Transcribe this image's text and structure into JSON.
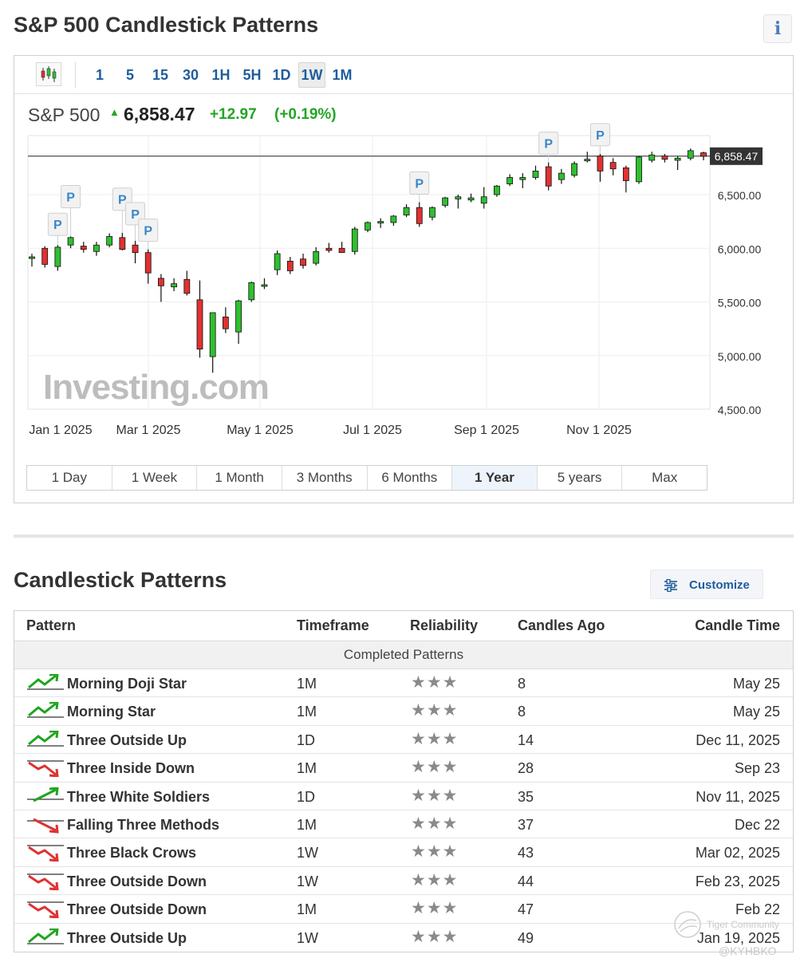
{
  "page": {
    "title": "S&P 500 Candlestick Patterns",
    "info_label": "i"
  },
  "toolbar": {
    "timeframes": [
      {
        "label": "1",
        "active": false
      },
      {
        "label": "5",
        "active": false
      },
      {
        "label": "15",
        "active": false
      },
      {
        "label": "30",
        "active": false
      },
      {
        "label": "1H",
        "active": false
      },
      {
        "label": "5H",
        "active": false
      },
      {
        "label": "1D",
        "active": false
      },
      {
        "label": "1W",
        "active": true
      },
      {
        "label": "1M",
        "active": false
      }
    ]
  },
  "quote": {
    "name": "S&P 500",
    "arrow": "▲",
    "price": "6,858.47",
    "change": "+12.97",
    "change_pct": "(+0.19%)"
  },
  "chart_data": {
    "type": "candlestick",
    "interval": "1W",
    "y_tick_labels": [
      "6,500.00",
      "6,000.00",
      "5,500.00",
      "5,000.00",
      "4,500.00"
    ],
    "y_ticks": [
      6500,
      6000,
      5500,
      5000,
      4500
    ],
    "x_tick_labels": [
      "Jan 1 2025",
      "Mar 1 2025",
      "May 1 2025",
      "Jul 1 2025",
      "Sep 1 2025",
      "Nov 1 2025"
    ],
    "ylim": [
      4500,
      7000
    ],
    "current_price": 6858.47,
    "current_price_label": "6,858.47",
    "watermark": "Investing.com",
    "pattern_marker_label": "P",
    "candles": [
      {
        "o": 5905,
        "h": 5950,
        "l": 5830,
        "c": 5920
      },
      {
        "o": 6000,
        "h": 6020,
        "l": 5820,
        "c": 5850
      },
      {
        "o": 5830,
        "h": 6030,
        "l": 5790,
        "c": 6010
      },
      {
        "o": 6030,
        "h": 6110,
        "l": 6000,
        "c": 6100
      },
      {
        "o": 6020,
        "h": 6060,
        "l": 5960,
        "c": 5990
      },
      {
        "o": 5970,
        "h": 6060,
        "l": 5930,
        "c": 6030
      },
      {
        "o": 6030,
        "h": 6140,
        "l": 6010,
        "c": 6110
      },
      {
        "o": 6100,
        "h": 6145,
        "l": 5980,
        "c": 5990
      },
      {
        "o": 6030,
        "h": 6070,
        "l": 5860,
        "c": 5960
      },
      {
        "o": 5960,
        "h": 5990,
        "l": 5670,
        "c": 5770
      },
      {
        "o": 5720,
        "h": 5760,
        "l": 5500,
        "c": 5650
      },
      {
        "o": 5640,
        "h": 5720,
        "l": 5600,
        "c": 5670
      },
      {
        "o": 5710,
        "h": 5790,
        "l": 5560,
        "c": 5580
      },
      {
        "o": 5520,
        "h": 5700,
        "l": 4980,
        "c": 5060
      },
      {
        "o": 4990,
        "h": 5400,
        "l": 4840,
        "c": 5400
      },
      {
        "o": 5360,
        "h": 5450,
        "l": 5210,
        "c": 5250
      },
      {
        "o": 5220,
        "h": 5520,
        "l": 5110,
        "c": 5510
      },
      {
        "o": 5520,
        "h": 5690,
        "l": 5500,
        "c": 5680
      },
      {
        "o": 5650,
        "h": 5720,
        "l": 5620,
        "c": 5660
      },
      {
        "o": 5800,
        "h": 5980,
        "l": 5750,
        "c": 5950
      },
      {
        "o": 5880,
        "h": 5920,
        "l": 5760,
        "c": 5790
      },
      {
        "o": 5900,
        "h": 5950,
        "l": 5810,
        "c": 5840
      },
      {
        "o": 5860,
        "h": 6010,
        "l": 5840,
        "c": 5970
      },
      {
        "o": 6000,
        "h": 6050,
        "l": 5960,
        "c": 5980
      },
      {
        "o": 6000,
        "h": 6060,
        "l": 5960,
        "c": 5960
      },
      {
        "o": 5970,
        "h": 6200,
        "l": 5940,
        "c": 6180
      },
      {
        "o": 6170,
        "h": 6250,
        "l": 6150,
        "c": 6240
      },
      {
        "o": 6240,
        "h": 6280,
        "l": 6190,
        "c": 6250
      },
      {
        "o": 6240,
        "h": 6310,
        "l": 6210,
        "c": 6300
      },
      {
        "o": 6310,
        "h": 6410,
        "l": 6290,
        "c": 6380
      },
      {
        "o": 6380,
        "h": 6430,
        "l": 6200,
        "c": 6230
      },
      {
        "o": 6290,
        "h": 6390,
        "l": 6260,
        "c": 6380
      },
      {
        "o": 6400,
        "h": 6480,
        "l": 6380,
        "c": 6470
      },
      {
        "o": 6460,
        "h": 6500,
        "l": 6370,
        "c": 6480
      },
      {
        "o": 6450,
        "h": 6510,
        "l": 6430,
        "c": 6470
      },
      {
        "o": 6420,
        "h": 6570,
        "l": 6370,
        "c": 6480
      },
      {
        "o": 6500,
        "h": 6590,
        "l": 6480,
        "c": 6580
      },
      {
        "o": 6600,
        "h": 6690,
        "l": 6580,
        "c": 6660
      },
      {
        "o": 6640,
        "h": 6700,
        "l": 6560,
        "c": 6660
      },
      {
        "o": 6660,
        "h": 6770,
        "l": 6640,
        "c": 6720
      },
      {
        "o": 6760,
        "h": 6800,
        "l": 6540,
        "c": 6580
      },
      {
        "o": 6640,
        "h": 6740,
        "l": 6600,
        "c": 6700
      },
      {
        "o": 6680,
        "h": 6810,
        "l": 6660,
        "c": 6790
      },
      {
        "o": 6820,
        "h": 6900,
        "l": 6800,
        "c": 6830
      },
      {
        "o": 6860,
        "h": 6880,
        "l": 6620,
        "c": 6720
      },
      {
        "o": 6800,
        "h": 6840,
        "l": 6680,
        "c": 6740
      },
      {
        "o": 6750,
        "h": 6770,
        "l": 6520,
        "c": 6630
      },
      {
        "o": 6620,
        "h": 6860,
        "l": 6600,
        "c": 6850
      },
      {
        "o": 6820,
        "h": 6900,
        "l": 6800,
        "c": 6870
      },
      {
        "o": 6860,
        "h": 6880,
        "l": 6800,
        "c": 6830
      },
      {
        "o": 6820,
        "h": 6860,
        "l": 6730,
        "c": 6840
      },
      {
        "o": 6840,
        "h": 6930,
        "l": 6820,
        "c": 6910
      },
      {
        "o": 6890,
        "h": 6900,
        "l": 6820,
        "c": 6858
      }
    ],
    "pattern_markers": [
      {
        "candle": 2
      },
      {
        "candle": 3
      },
      {
        "candle": 7
      },
      {
        "candle": 8
      },
      {
        "candle": 9
      },
      {
        "candle": 30
      },
      {
        "candle": 40
      },
      {
        "candle": 44
      }
    ]
  },
  "ranges": [
    {
      "label": "1 Day",
      "active": false
    },
    {
      "label": "1 Week",
      "active": false
    },
    {
      "label": "1 Month",
      "active": false
    },
    {
      "label": "3 Months",
      "active": false
    },
    {
      "label": "6 Months",
      "active": false
    },
    {
      "label": "1 Year",
      "active": true
    },
    {
      "label": "5 years",
      "active": false
    },
    {
      "label": "Max",
      "active": false
    }
  ],
  "patterns": {
    "title": "Candlestick Patterns",
    "customize_label": "Customize",
    "headers": {
      "pattern": "Pattern",
      "timeframe": "Timeframe",
      "reliability": "Reliability",
      "candles_ago": "Candles Ago",
      "candle_time": "Candle Time"
    },
    "group_label": "Completed Patterns",
    "rows": [
      {
        "name": "Morning Doji Star",
        "timeframe": "1M",
        "stars": "★★★",
        "candles_ago": "8",
        "time": "May 25",
        "direction": "bullish-strong"
      },
      {
        "name": "Morning Star",
        "timeframe": "1M",
        "stars": "★★★",
        "candles_ago": "8",
        "time": "May 25",
        "direction": "bullish-strong"
      },
      {
        "name": "Three Outside Up",
        "timeframe": "1D",
        "stars": "★★★",
        "candles_ago": "14",
        "time": "Dec 11, 2025",
        "direction": "bullish-strong"
      },
      {
        "name": "Three Inside Down",
        "timeframe": "1M",
        "stars": "★★★",
        "candles_ago": "28",
        "time": "Sep 23",
        "direction": "bearish-strong"
      },
      {
        "name": "Three White Soldiers",
        "timeframe": "1D",
        "stars": "★★★",
        "candles_ago": "35",
        "time": "Nov 11, 2025",
        "direction": "bullish-continuation"
      },
      {
        "name": "Falling Three Methods",
        "timeframe": "1M",
        "stars": "★★★",
        "candles_ago": "37",
        "time": "Dec 22",
        "direction": "bearish-continuation"
      },
      {
        "name": "Three Black Crows",
        "timeframe": "1W",
        "stars": "★★★",
        "candles_ago": "43",
        "time": "Mar 02, 2025",
        "direction": "bearish-strong"
      },
      {
        "name": "Three Outside Down",
        "timeframe": "1W",
        "stars": "★★★",
        "candles_ago": "44",
        "time": "Feb 23, 2025",
        "direction": "bearish-strong"
      },
      {
        "name": "Three Outside Down",
        "timeframe": "1M",
        "stars": "★★★",
        "candles_ago": "47",
        "time": "Feb 22",
        "direction": "bearish-strong"
      },
      {
        "name": "Three Outside Up",
        "timeframe": "1W",
        "stars": "★★★",
        "candles_ago": "49",
        "time": "Jan 19, 2025",
        "direction": "bullish-strong"
      }
    ]
  },
  "watermark": {
    "line1": "Tiger Community",
    "line2": "@KYHBKO"
  },
  "colors": {
    "bull": "#2fbf2f",
    "bear": "#e03131",
    "link": "#1f5c9c",
    "up_text": "#23a524"
  }
}
